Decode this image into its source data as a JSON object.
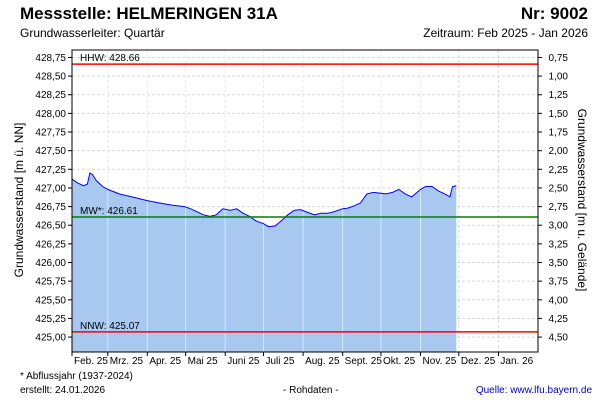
{
  "header": {
    "title": "Messstelle: HELMERINGEN 31A",
    "number": "Nr: 9002",
    "aquifer": "Grundwasserleiter: Quartär",
    "period": "Zeitraum: Feb 2025 - Jan 2026"
  },
  "footer": {
    "note": "* Abflussjahr (1937-2024)",
    "created": "erstellt:  24.01.2026",
    "raw": "- Rohdaten -",
    "source": "Quelle: www.lfu.bayern.de"
  },
  "chart_data": {
    "type": "area",
    "ylabel": "Grundwasserstand [m ü. NN]",
    "y2label": "Grundwasserstand [m u. Gelände]",
    "ylim": [
      424.8,
      428.85
    ],
    "y_ticks": [
      "428,75",
      "428,50",
      "428,25",
      "428,00",
      "427,75",
      "427,50",
      "427,25",
      "427,00",
      "426,75",
      "426,50",
      "426,25",
      "426,00",
      "425,75",
      "425,50",
      "425,25",
      "425,00"
    ],
    "y_tick_values": [
      428.75,
      428.5,
      428.25,
      428.0,
      427.75,
      427.5,
      427.25,
      427.0,
      426.75,
      426.5,
      426.25,
      426.0,
      425.75,
      425.5,
      425.25,
      425.0
    ],
    "y2_ticks": [
      "0,75",
      "1,00",
      "1,25",
      "1,50",
      "1,75",
      "2,00",
      "2,25",
      "2,50",
      "2,75",
      "3,00",
      "3,25",
      "3,50",
      "3,75",
      "4,00",
      "4,25",
      "4,50"
    ],
    "y2_tick_values": [
      0.75,
      1.0,
      1.25,
      1.5,
      1.75,
      2.0,
      2.25,
      2.5,
      2.75,
      3.0,
      3.25,
      3.5,
      3.75,
      4.0,
      4.25,
      4.5
    ],
    "ground_level": 429.5,
    "xlim": [
      "2025-02-01",
      "2026-01-31"
    ],
    "x_ticks": [
      "Feb. 25",
      "Mrz. 25",
      "Apr. 25",
      "Mai 25",
      "Juni 25",
      "Juli 25",
      "Aug. 25",
      "Sept. 25",
      "Okt. 25",
      "Nov. 25",
      "Dez. 25",
      "Jan. 26"
    ],
    "x_tick_dates": [
      "2025-02-01",
      "2025-03-01",
      "2025-04-01",
      "2025-05-01",
      "2025-06-01",
      "2025-07-01",
      "2025-08-01",
      "2025-09-01",
      "2025-10-01",
      "2025-11-01",
      "2025-12-01",
      "2026-01-01"
    ],
    "grid": true,
    "reference_lines": [
      {
        "label": "HHW: 428.66",
        "value": 428.66,
        "color": "#ff0000"
      },
      {
        "label": "MW*: 426.61",
        "value": 426.61,
        "color": "#008000"
      },
      {
        "label": "NNW: 425.07",
        "value": 425.07,
        "color": "#ff0000"
      }
    ],
    "series": [
      {
        "line_color": "#0000ff",
        "fill_color": "#a8c8f0",
        "x": [
          "2025-02-01",
          "2025-02-05",
          "2025-02-10",
          "2025-02-13",
          "2025-02-15",
          "2025-02-17",
          "2025-02-20",
          "2025-02-25",
          "2025-03-01",
          "2025-03-10",
          "2025-03-20",
          "2025-04-01",
          "2025-04-10",
          "2025-04-20",
          "2025-04-30",
          "2025-05-05",
          "2025-05-10",
          "2025-05-15",
          "2025-05-20",
          "2025-05-25",
          "2025-05-30",
          "2025-06-05",
          "2025-06-10",
          "2025-06-15",
          "2025-06-20",
          "2025-06-25",
          "2025-07-01",
          "2025-07-05",
          "2025-07-10",
          "2025-07-15",
          "2025-07-20",
          "2025-07-25",
          "2025-07-30",
          "2025-08-05",
          "2025-08-10",
          "2025-08-15",
          "2025-08-20",
          "2025-08-25",
          "2025-09-01",
          "2025-09-05",
          "2025-09-10",
          "2025-09-15",
          "2025-09-20",
          "2025-09-25",
          "2025-10-01",
          "2025-10-05",
          "2025-10-10",
          "2025-10-15",
          "2025-10-20",
          "2025-10-25",
          "2025-11-01",
          "2025-11-05",
          "2025-11-10",
          "2025-11-15",
          "2025-11-20",
          "2025-11-24",
          "2025-11-26",
          "2025-11-29"
        ],
        "y": [
          427.12,
          427.07,
          427.03,
          427.05,
          427.2,
          427.18,
          427.1,
          427.02,
          426.98,
          426.92,
          426.88,
          426.83,
          426.8,
          426.77,
          426.75,
          426.72,
          426.68,
          426.64,
          426.62,
          426.64,
          426.72,
          426.7,
          426.72,
          426.66,
          426.62,
          426.56,
          426.52,
          426.48,
          426.49,
          426.56,
          426.64,
          426.7,
          426.71,
          426.67,
          426.64,
          426.66,
          426.66,
          426.68,
          426.72,
          426.73,
          426.76,
          426.8,
          426.92,
          426.94,
          426.93,
          426.92,
          426.94,
          426.98,
          426.92,
          426.88,
          426.98,
          427.02,
          427.02,
          426.96,
          426.92,
          426.88,
          427.02,
          427.03
        ]
      }
    ]
  }
}
